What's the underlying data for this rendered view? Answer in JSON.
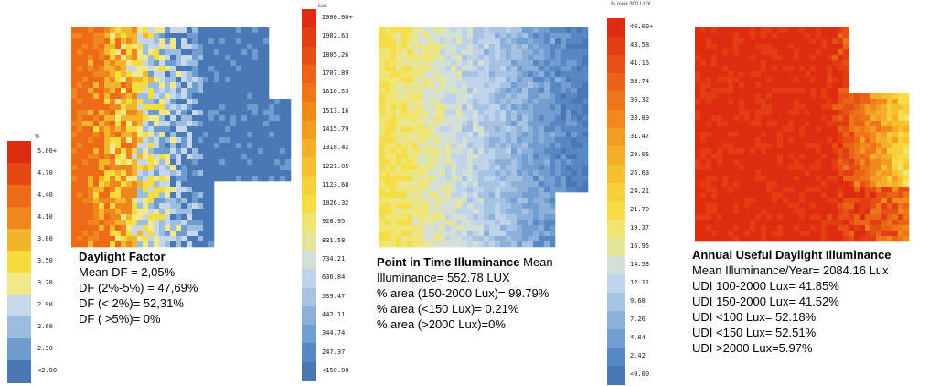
{
  "panels": [
    {
      "id": "daylight-factor",
      "unit": "%",
      "ticks": [
        "5.00+",
        "4.70",
        "4.40",
        "4.10",
        "3.80",
        "3.50",
        "3.20",
        "2.90",
        "2.60",
        "2.30",
        "<2.00"
      ],
      "colors": [
        "#dd2c10",
        "#e54a12",
        "#ec6a18",
        "#f0871e",
        "#f3b52c",
        "#f5dd40",
        "#f2e88a",
        "#c7d7ea",
        "#9dbde0",
        "#6f9ccf",
        "#4a78b5"
      ],
      "caption": {
        "title": "Daylight Factor",
        "title_inline": "",
        "lines": [
          "Mean DF = 2,05%",
          "DF (2%-5%) = 47,69%",
          "DF (< 2%)= 52,31%",
          "DF ( >5%)= 0%"
        ]
      }
    },
    {
      "id": "point-in-time-illuminance",
      "unit": "Lux",
      "ticks": [
        "2000.00+",
        "1902.63",
        "1805.26",
        "1707.89",
        "1610.53",
        "1513.16",
        "1415.79",
        "1318.42",
        "1221.05",
        "1123.68",
        "1026.32",
        "928.95",
        "831.58",
        "734.21",
        "636.84",
        "539.47",
        "442.11",
        "344.74",
        "247.37",
        "<150.00"
      ],
      "colors": [
        "#dd2c10",
        "#e23e12",
        "#e65014",
        "#ea6317",
        "#ee761a",
        "#f1891e",
        "#f39c23",
        "#f5ae29",
        "#f6c031",
        "#f6d03b",
        "#f5dd47",
        "#f0e472",
        "#e5e59c",
        "#d4e0d6",
        "#bfd3ea",
        "#a7c3e3",
        "#8db0da",
        "#729dd0",
        "#5888c3",
        "#4a78b5"
      ],
      "caption": {
        "title": "Point in Time Illuminance",
        "title_inline": " Mean",
        "lines": [
          "Illuminance= 552.78 LUX",
          "% area (150-2000 Lux)= 99.79%",
          "% area (<150 Lux)= 0.21%",
          "% area (>2000 Lux)=0%"
        ]
      }
    },
    {
      "id": "annual-useful-daylight-illuminance",
      "unit": "% over 300 LUX",
      "ticks": [
        "46.00+",
        "43.58",
        "41.16",
        "38.74",
        "36.32",
        "33.89",
        "31.47",
        "29.05",
        "26.63",
        "24.21",
        "21.79",
        "19.37",
        "16.95",
        "14.53",
        "12.11",
        "9.68",
        "7.26",
        "4.84",
        "2.42",
        "<0.00"
      ],
      "colors": [
        "#dd2c10",
        "#e23e12",
        "#e65014",
        "#ea6317",
        "#ee761a",
        "#f1891e",
        "#f39c23",
        "#f5ae29",
        "#f6c031",
        "#f6d03b",
        "#f5dd47",
        "#f0e472",
        "#e5e59c",
        "#d4e0d6",
        "#bfd3ea",
        "#a7c3e3",
        "#8db0da",
        "#729dd0",
        "#5888c3",
        "#4a78b5"
      ],
      "caption": {
        "title": "Annual Useful Daylight Illuminance",
        "title_inline": "",
        "lines": [
          "Mean Illuminance/Year= 2084.16 Lux",
          "UDI 100-2000 Lux= 41.85%",
          "UDI 150-2000 Lux= 41.52%",
          "UDI <100 Lux= 52.18%",
          "UDI <150 Lux= 52.51%",
          "UDI >2000 Lux=5.97%"
        ]
      }
    }
  ]
}
